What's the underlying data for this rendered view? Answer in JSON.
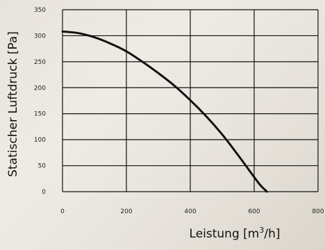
{
  "chart_data": {
    "type": "line",
    "xlabel": "Leistung [m³/h]",
    "ylabel": "Statischer Luftdruck  [Pa]",
    "xlim": [
      0,
      800
    ],
    "ylim": [
      0,
      350
    ],
    "x_ticks": [
      "0",
      "200",
      "400",
      "600",
      "800"
    ],
    "y_ticks": [
      "0",
      "50",
      "100",
      "150",
      "200",
      "250",
      "300",
      "350"
    ],
    "grid": true,
    "series": [
      {
        "x": [
          0,
          50,
          100,
          150,
          200,
          250,
          300,
          350,
          400,
          450,
          500,
          550,
          600,
          620,
          640
        ],
        "y": [
          308,
          305,
          297,
          285,
          270,
          250,
          228,
          204,
          176,
          145,
          110,
          70,
          28,
          12,
          0
        ]
      }
    ]
  }
}
